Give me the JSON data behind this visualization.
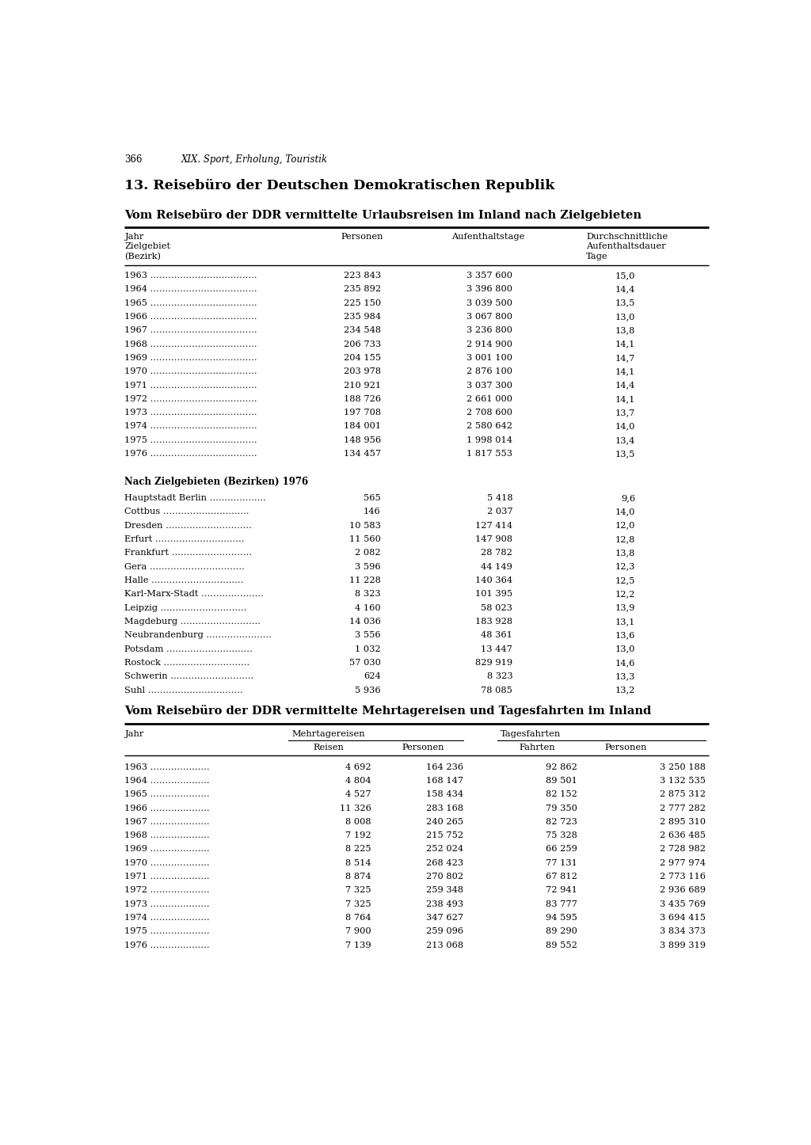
{
  "page_number": "366",
  "chapter_header": "XIX. Sport, Erholung, Touristik",
  "section_title": "13. Reisebüro der Deutschen Demokratischen Republik",
  "table1_title": "Vom Reisebüro der DDR vermittelte Urlaubsreisen im Inland nach Zielgebieten",
  "table1_col_h1": "Jahr\nZielgebiet\n(Bezirk)",
  "table1_col_h2": "Personen",
  "table1_col_h3": "Aufenthaltstage",
  "table1_col_h4": "Durchschnittliche\nAufenthaltsdauer\nTage",
  "table1_years": [
    [
      "1963",
      "223 843",
      "3 357 600",
      "15,0"
    ],
    [
      "1964",
      "235 892",
      "3 396 800",
      "14,4"
    ],
    [
      "1965",
      "225 150",
      "3 039 500",
      "13,5"
    ],
    [
      "1966",
      "235 984",
      "3 067 800",
      "13,0"
    ],
    [
      "1967",
      "234 548",
      "3 236 800",
      "13,8"
    ],
    [
      "1968",
      "206 733",
      "2 914 900",
      "14,1"
    ],
    [
      "1969",
      "204 155",
      "3 001 100",
      "14,7"
    ],
    [
      "1970",
      "203 978",
      "2 876 100",
      "14,1"
    ],
    [
      "1971",
      "210 921",
      "3 037 300",
      "14,4"
    ],
    [
      "1972",
      "188 726",
      "2 661 000",
      "14,1"
    ],
    [
      "1973",
      "197 708",
      "2 708 600",
      "13,7"
    ],
    [
      "1974",
      "184 001",
      "2 580 642",
      "14,0"
    ],
    [
      "1975",
      "148 956",
      "1 998 014",
      "13,4"
    ],
    [
      "1976",
      "134 457",
      "1 817 553",
      "13,5"
    ]
  ],
  "subsection_title": "Nach Zielgebieten (Bezirken) 1976",
  "table1b_rows": [
    [
      "Hauptstadt Berlin",
      "565",
      "5 418",
      "9,6"
    ],
    [
      "Cottbus",
      "146",
      "2 037",
      "14,0"
    ],
    [
      "Dresden",
      "10 583",
      "127 414",
      "12,0"
    ],
    [
      "Erfurt",
      "11 560",
      "147 908",
      "12,8"
    ],
    [
      "Frankfurt",
      "2 082",
      "28 782",
      "13,8"
    ],
    [
      "Gera",
      "3 596",
      "44 149",
      "12,3"
    ],
    [
      "Halle",
      "11 228",
      "140 364",
      "12,5"
    ],
    [
      "Karl-Marx-Stadt",
      "8 323",
      "101 395",
      "12,2"
    ],
    [
      "Leipzig",
      "4 160",
      "58 023",
      "13,9"
    ],
    [
      "Magdeburg",
      "14 036",
      "183 928",
      "13,1"
    ],
    [
      "Neubrandenburg",
      "3 556",
      "48 361",
      "13,6"
    ],
    [
      "Potsdam",
      "1 032",
      "13 447",
      "13,0"
    ],
    [
      "Rostock",
      "57 030",
      "829 919",
      "14,6"
    ],
    [
      "Schwerin",
      "624",
      "8 323",
      "13,3"
    ],
    [
      "Suhl",
      "5 936",
      "78 085",
      "13,2"
    ]
  ],
  "table2_title": "Vom Reisebüro der DDR vermittelte Mehrtagereisen und Tagesfahrten im Inland",
  "table2_h_mehrtagereisen": "Mehrtagereisen",
  "table2_h_tagesfahrten": "Tagesfahrten",
  "table2_h_reisen": "Reisen",
  "table2_h_personen1": "Personen",
  "table2_h_fahrten": "Fahrten",
  "table2_h_personen2": "Personen",
  "table2_h_jahr": "Jahr",
  "table2_rows": [
    [
      "1963",
      "4 692",
      "164 236",
      "92 862",
      "3 250 188"
    ],
    [
      "1964",
      "4 804",
      "168 147",
      "89 501",
      "3 132 535"
    ],
    [
      "1965",
      "4 527",
      "158 434",
      "82 152",
      "2 875 312"
    ],
    [
      "1966",
      "11 326",
      "283 168",
      "79 350",
      "2 777 282"
    ],
    [
      "1967",
      "8 008",
      "240 265",
      "82 723",
      "2 895 310"
    ],
    [
      "1968",
      "7 192",
      "215 752",
      "75 328",
      "2 636 485"
    ],
    [
      "1969",
      "8 225",
      "252 024",
      "66 259",
      "2 728 982"
    ],
    [
      "1970",
      "8 514",
      "268 423",
      "77 131",
      "2 977 974"
    ],
    [
      "1971",
      "8 874",
      "270 802",
      "67 812",
      "2 773 116"
    ],
    [
      "1972",
      "7 325",
      "259 348",
      "72 941",
      "2 936 689"
    ],
    [
      "1973",
      "7 325",
      "238 493",
      "83 777",
      "3 435 769"
    ],
    [
      "1974",
      "8 764",
      "347 627",
      "94 595",
      "3 694 415"
    ],
    [
      "1975",
      "7 900",
      "259 096",
      "89 290",
      "3 834 373"
    ],
    [
      "1976",
      "7 139",
      "213 068",
      "89 552",
      "3 899 319"
    ]
  ],
  "bg_color": "#ffffff",
  "text_color": "#000000",
  "fs_body": 8.2,
  "fs_title": 10.5,
  "fs_section": 12.5,
  "fs_page": 8.5,
  "fs_subsection": 8.5
}
